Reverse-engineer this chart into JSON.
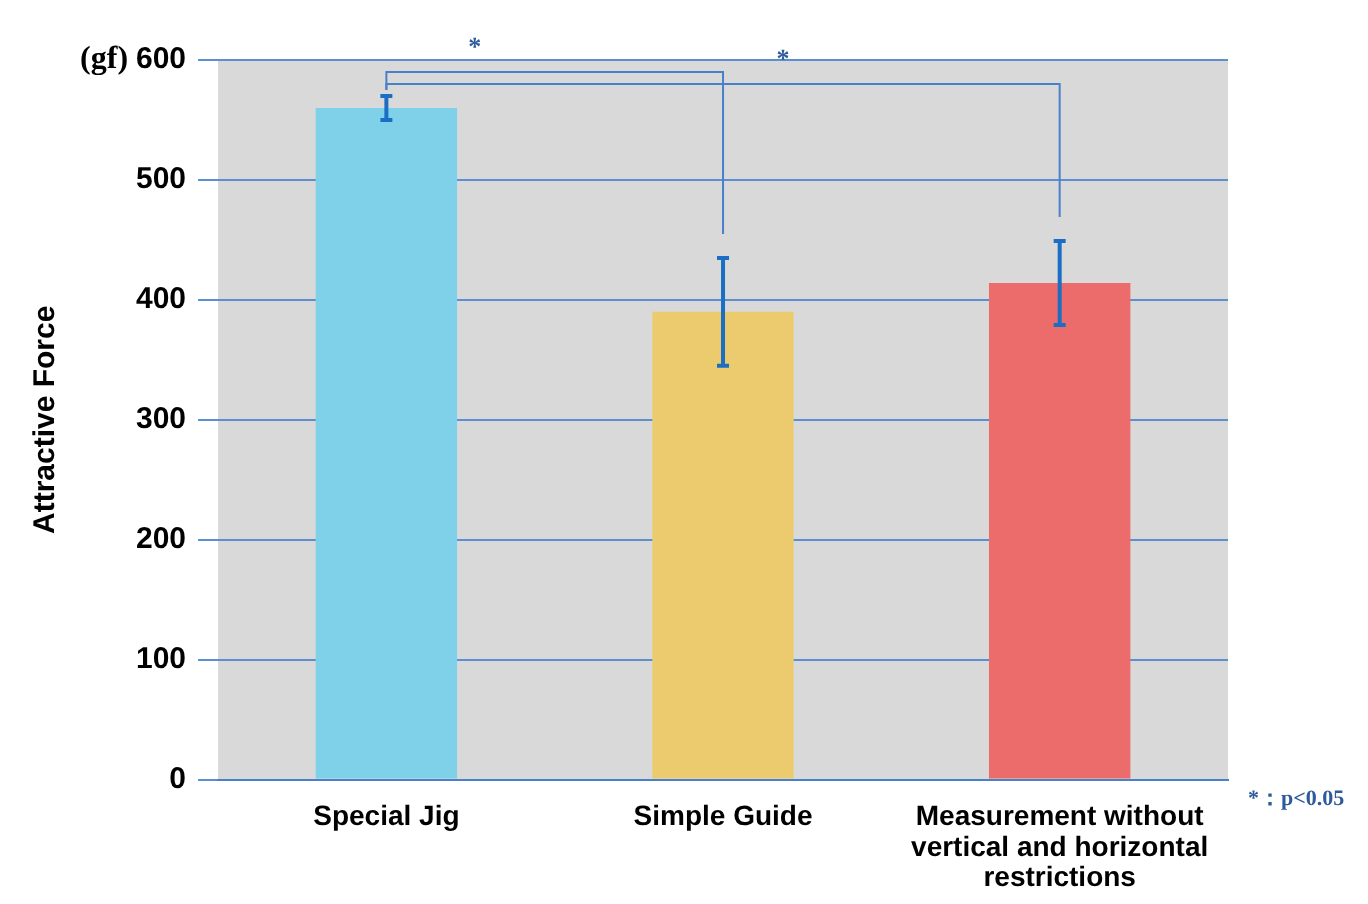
{
  "chart_data": {
    "type": "bar",
    "ylabel": "Attractive Force",
    "categories": [
      "Special Jig",
      "Simple Guide",
      "Measurement without vertical and horizontal restrictions"
    ],
    "values": [
      560,
      390,
      414
    ],
    "errors": [
      10,
      45,
      35
    ],
    "colors": [
      "#7fd1ea",
      "#eccb6e",
      "#ec6b6b"
    ],
    "ylim": [
      0,
      600
    ],
    "yticks": [
      0,
      100,
      200,
      300,
      400,
      500,
      600
    ],
    "grid": "y",
    "annotations": [
      "(gf)",
      "*",
      "*",
      "*：p<0.05"
    ]
  }
}
